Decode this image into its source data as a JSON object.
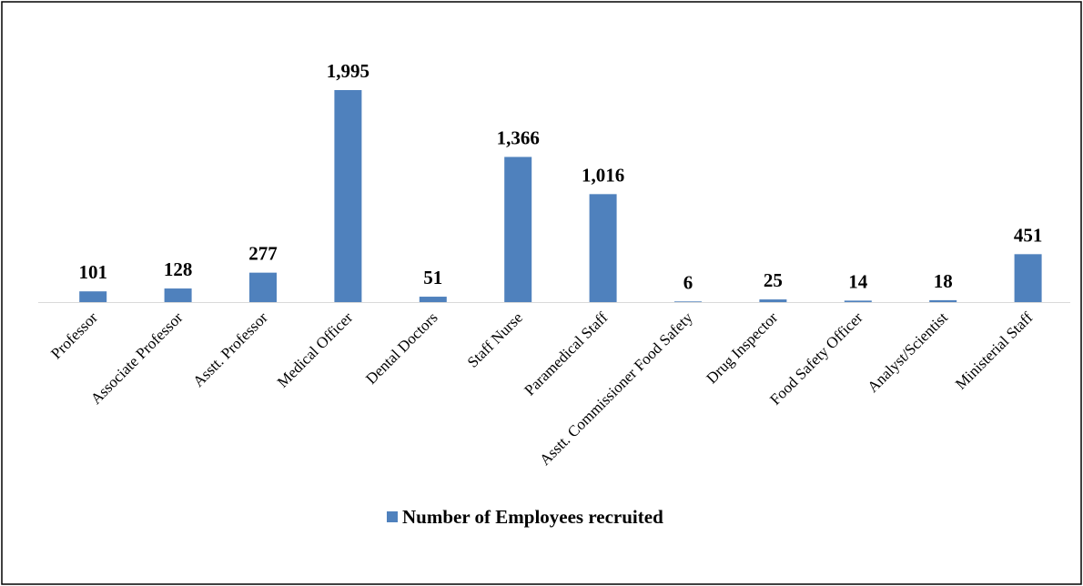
{
  "chart_data": {
    "type": "bar",
    "categories": [
      "Professor",
      "Associate Professor",
      "Asstt. Professor",
      "Medical Officer",
      "Dental Doctors",
      "Staff Nurse",
      "Paramedical Staff",
      "Asstt. Commissioner Food Safety",
      "Drug Inspector",
      "Food Safety Officer",
      "Analyst/Scientist",
      "Ministerial Staff"
    ],
    "series": [
      {
        "name": "Number of Employees recruited",
        "color": "#4f81bd",
        "values": [
          101,
          128,
          277,
          1995,
          51,
          1366,
          1016,
          6,
          25,
          14,
          18,
          451
        ],
        "value_labels": [
          "101",
          "128",
          "277",
          "1,995",
          "51",
          "1,366",
          "1,016",
          "6",
          "25",
          "14",
          "18",
          "451"
        ]
      }
    ],
    "legend": "bottom"
  }
}
